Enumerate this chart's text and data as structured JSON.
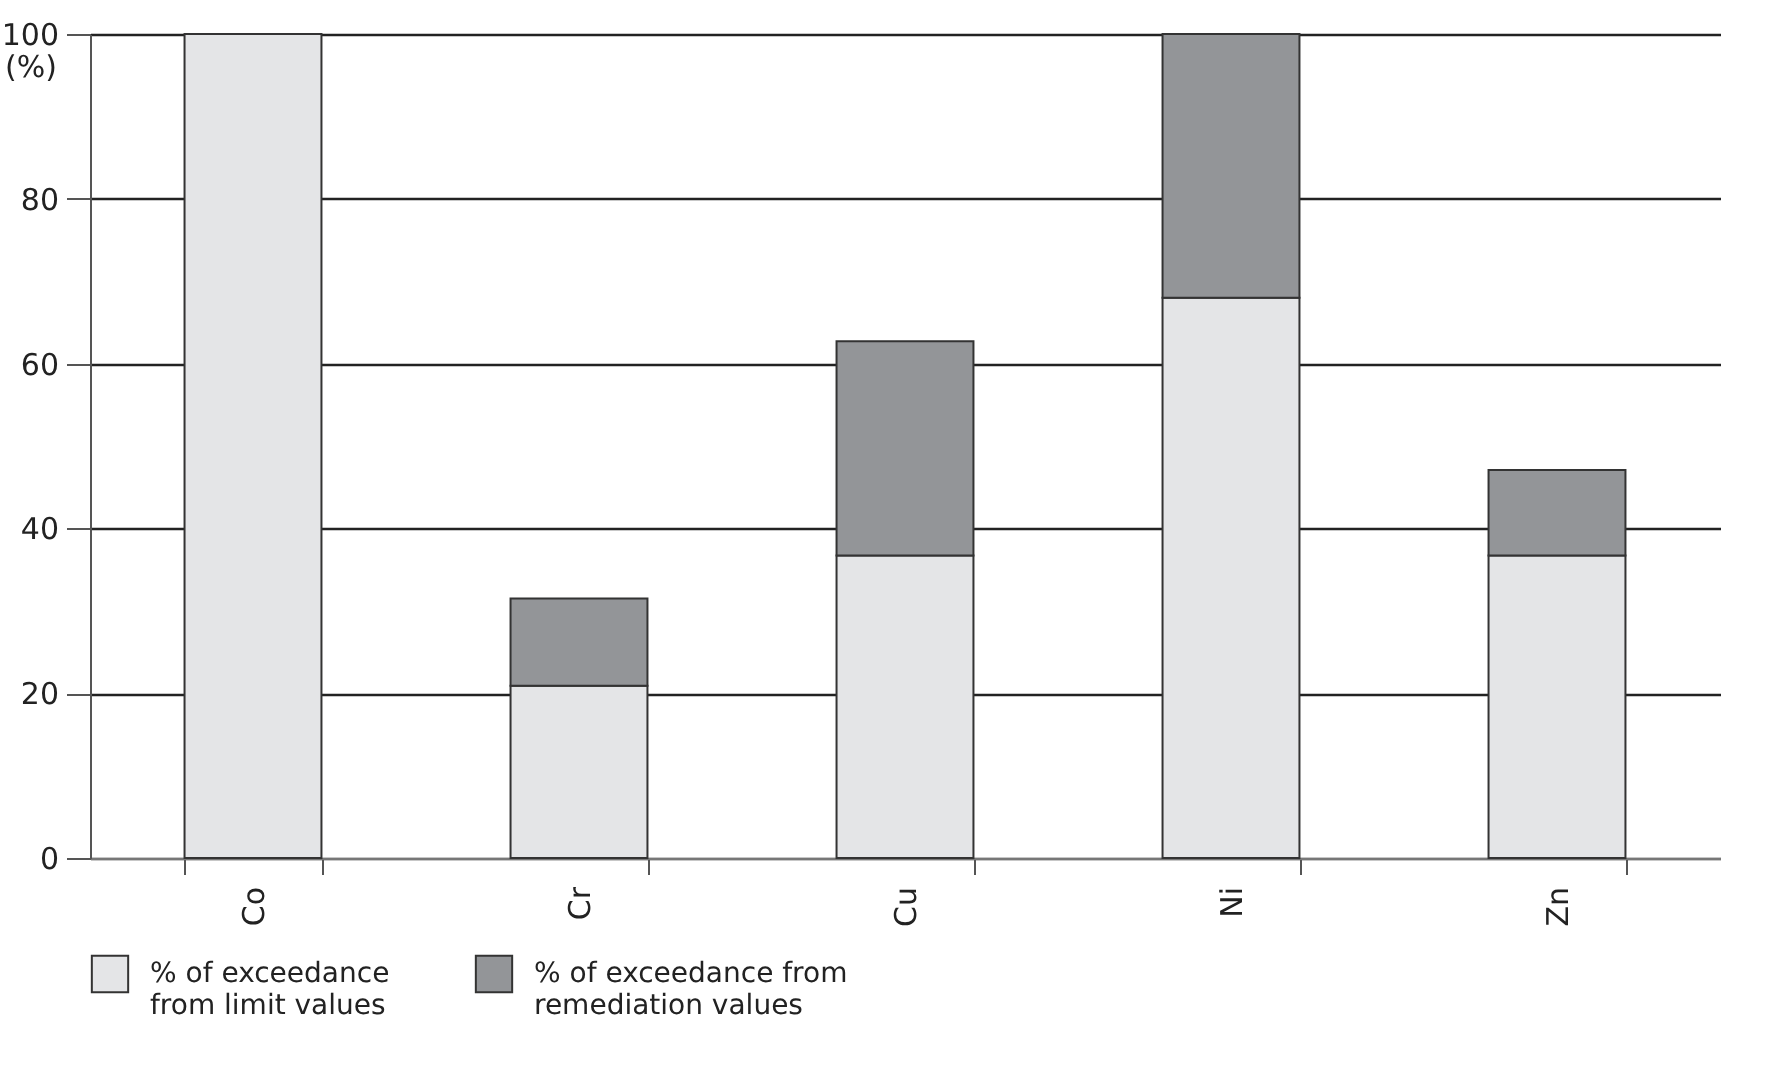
{
  "chart_data": {
    "type": "bar",
    "stacked": true,
    "ylabel": "(%)",
    "categories": [
      "Co",
      "Cr",
      "Cu",
      "Ni",
      "Zn"
    ],
    "series": [
      {
        "name": "% of exceedance from limit values",
        "color": "#e4e5e7",
        "values": [
          100,
          20.9,
          36.7,
          68,
          36.7
        ]
      },
      {
        "name": "% of exceedance from remediation values",
        "color": "#939598",
        "values": [
          null,
          10.6,
          26,
          32,
          10.4
        ]
      }
    ],
    "ylim": [
      0,
      100
    ],
    "yticks": [
      0,
      20,
      40,
      60,
      80,
      100
    ],
    "grid": "y",
    "legend": "bottom"
  }
}
